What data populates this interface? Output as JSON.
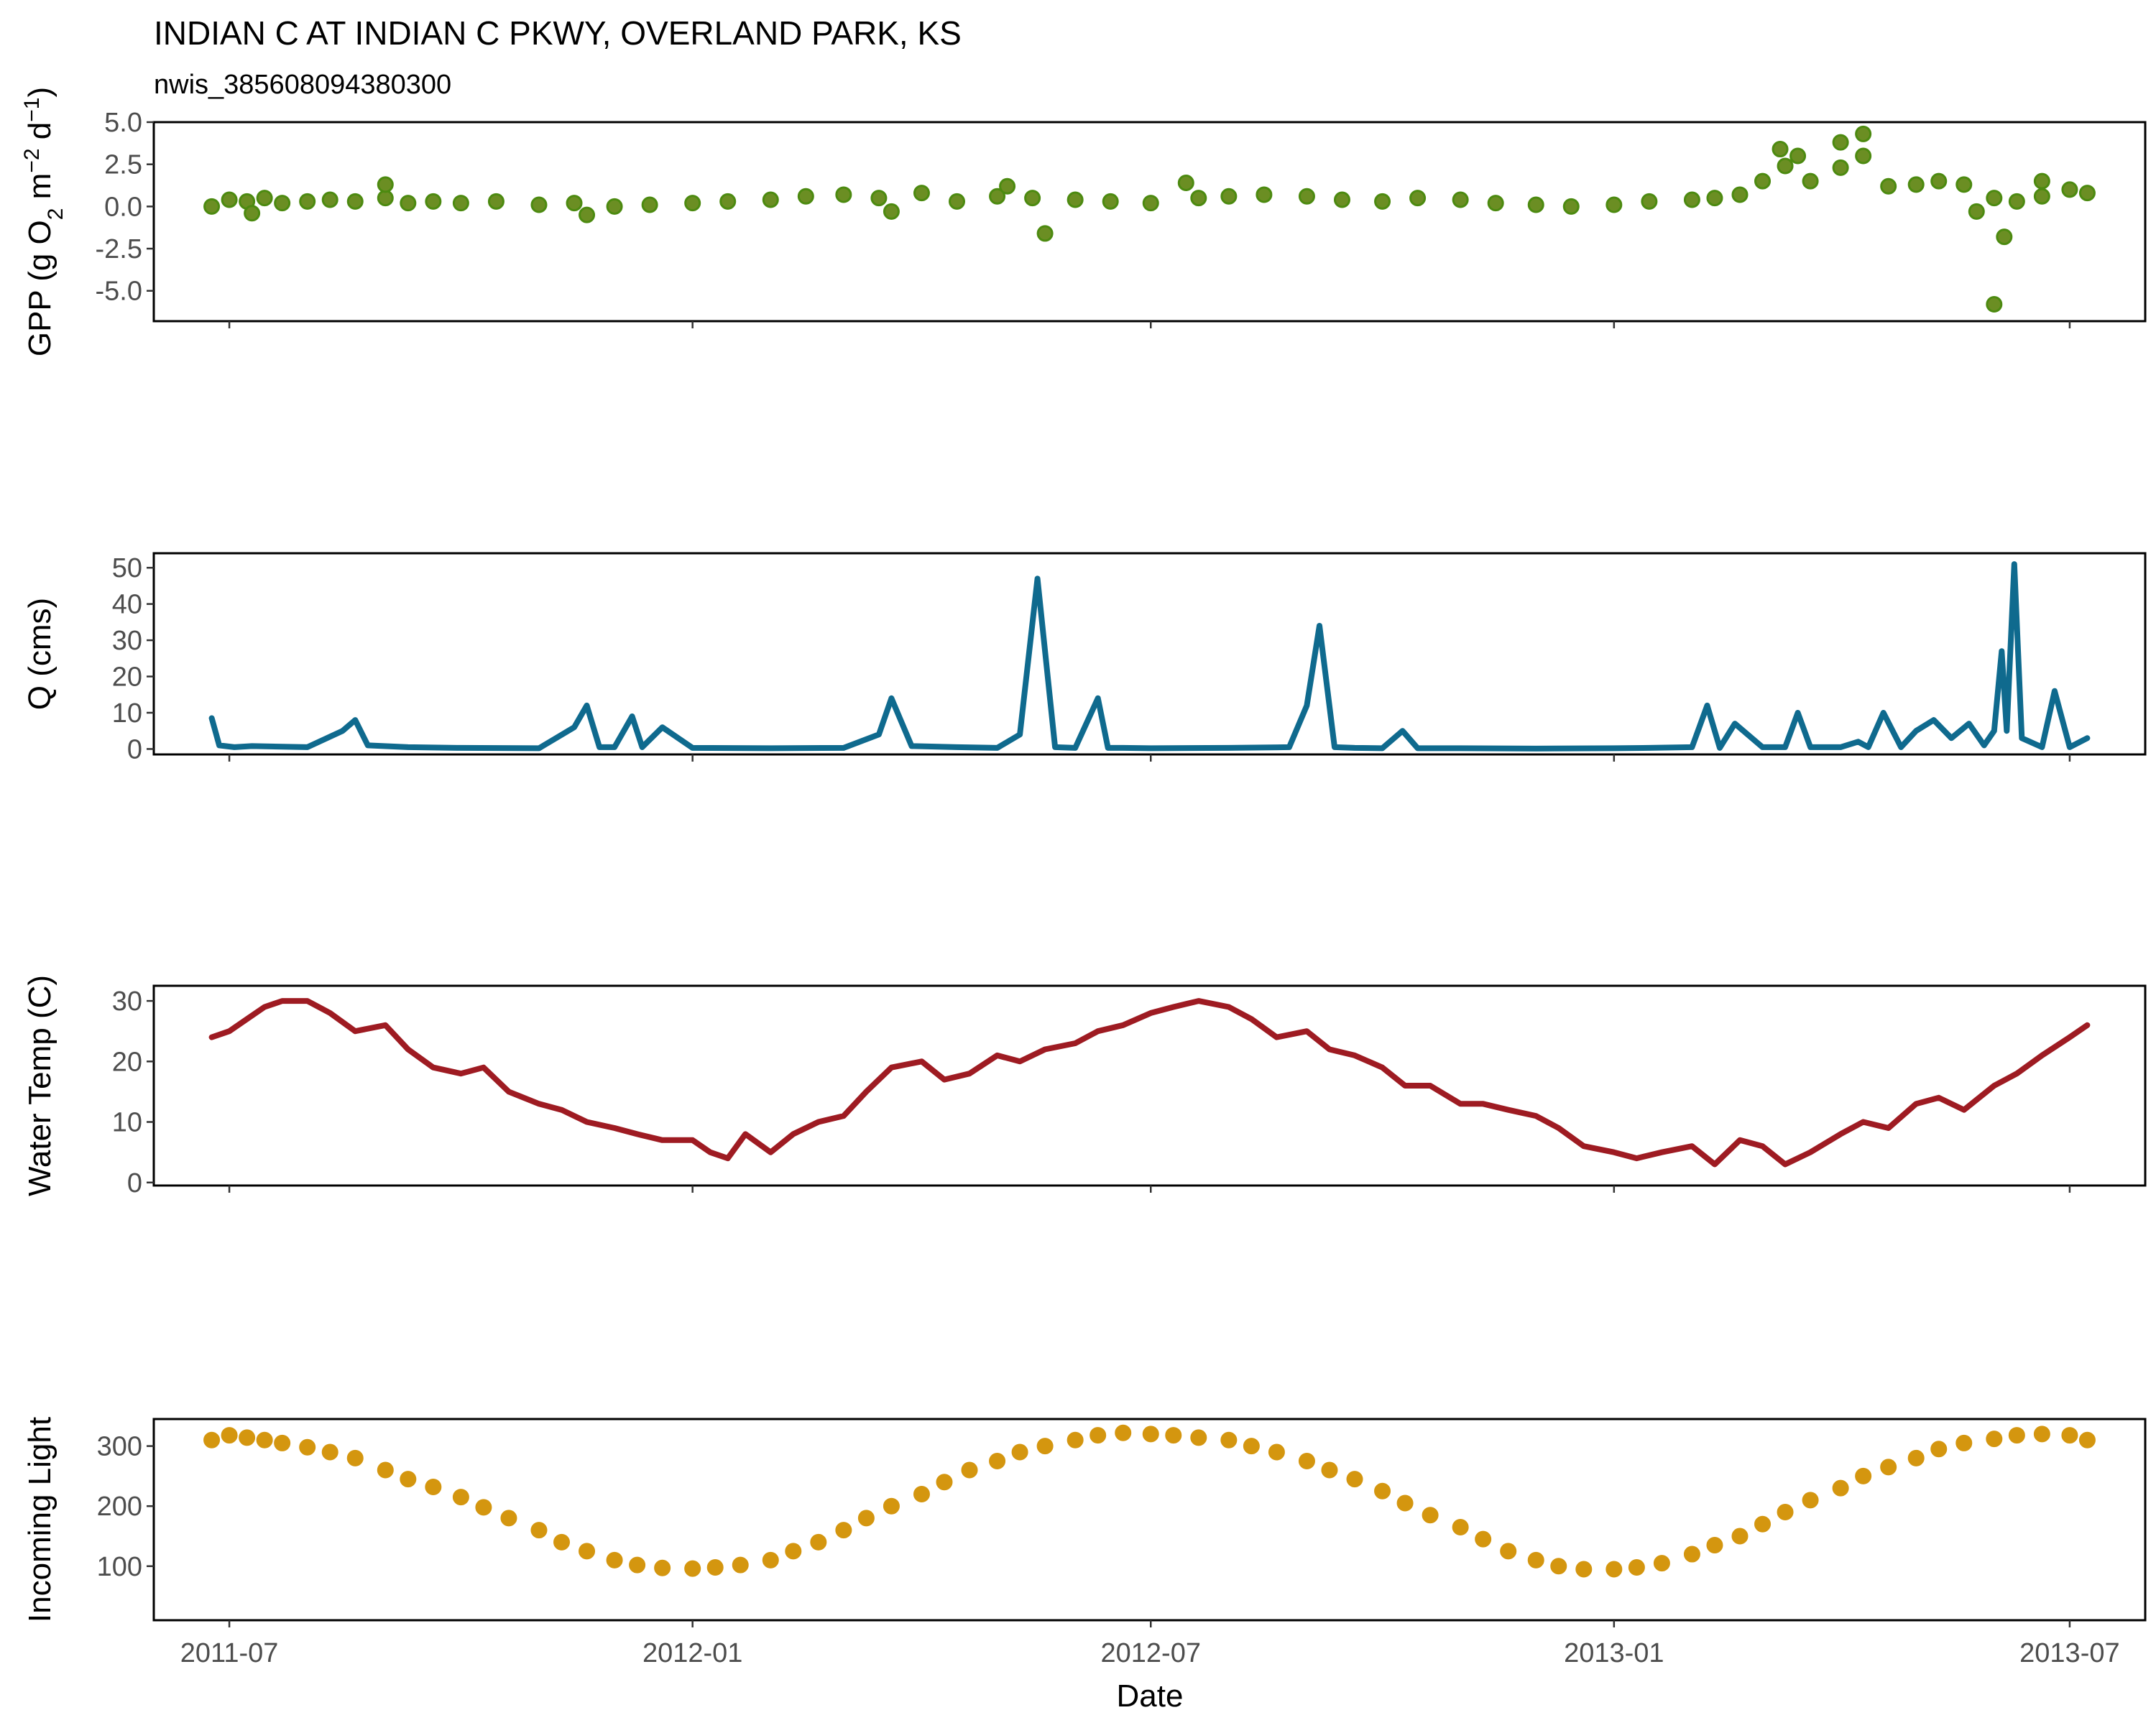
{
  "title": "INDIAN C AT INDIAN C PKWY, OVERLAND PARK, KS",
  "subtitle": "nwis_385608094380300",
  "chart_data": [
    {
      "id": "gpp",
      "type": "scatter",
      "ylabel_parts": {
        "pre": "GPP (g  O",
        "sub2": "2",
        "mid": " m",
        "sup1": "−2",
        "mid2": " d",
        "sup2": "−1",
        "post": ")"
      },
      "ylabel_text": "GPP (g O2 m-2 d-1)",
      "ylim": [
        -6.8,
        5.0
      ],
      "yticks": [
        {
          "v": 5.0,
          "label": "5.0"
        },
        {
          "v": 2.5,
          "label": "2.5"
        },
        {
          "v": 0.0,
          "label": "0.0"
        },
        {
          "v": -2.5,
          "label": "-2.5"
        },
        {
          "v": -5.0,
          "label": "-5.0"
        }
      ],
      "color": "#6b8e23",
      "edge": "#4c8a10",
      "x": [
        "2011-06-24",
        "2011-07-01",
        "2011-07-08",
        "2011-07-15",
        "2011-07-22",
        "2011-08-01",
        "2011-08-10",
        "2011-08-20",
        "2011-09-01",
        "2011-09-10",
        "2011-09-20",
        "2011-10-01",
        "2011-10-15",
        "2011-11-01",
        "2011-11-15",
        "2011-12-01",
        "2011-12-15",
        "2012-01-01",
        "2012-01-15",
        "2012-02-01",
        "2012-02-15",
        "2012-03-01",
        "2012-03-15",
        "2012-04-01",
        "2012-04-15",
        "2012-05-01",
        "2012-05-15",
        "2012-06-01",
        "2012-06-15",
        "2012-07-01",
        "2012-07-10",
        "2012-07-20",
        "2012-08-01",
        "2012-08-15",
        "2012-09-01",
        "2012-09-15",
        "2012-10-01",
        "2012-10-15",
        "2012-11-01",
        "2012-11-15",
        "2012-12-01",
        "2012-12-15",
        "2013-01-01",
        "2013-01-15",
        "2013-02-01",
        "2013-02-10",
        "2013-02-20",
        "2013-03-01",
        "2013-03-10",
        "2013-03-20",
        "2013-04-01",
        "2013-04-10",
        "2013-04-20",
        "2013-05-01",
        "2013-05-10",
        "2013-05-20",
        "2013-06-01",
        "2013-06-10",
        "2013-06-20",
        "2013-07-01",
        "2013-07-08"
      ],
      "y": [
        0.0,
        0.4,
        0.3,
        0.5,
        0.2,
        0.3,
        0.4,
        0.3,
        0.5,
        0.2,
        0.3,
        0.2,
        0.3,
        0.1,
        0.2,
        0.0,
        0.1,
        0.2,
        0.3,
        0.4,
        0.6,
        0.7,
        0.5,
        0.8,
        0.3,
        0.6,
        0.5,
        0.4,
        0.3,
        0.2,
        null,
        0.5,
        0.6,
        0.7,
        0.6,
        0.4,
        0.3,
        0.5,
        0.4,
        0.2,
        0.1,
        0.0,
        0.1,
        0.3,
        0.4,
        0.5,
        0.7,
        1.5,
        2.4,
        1.5,
        2.3,
        3.0,
        1.2,
        1.3,
        1.5,
        1.3,
        0.5,
        0.3,
        0.6,
        1.0,
        0.8
      ],
      "outliers": {
        "x": [
          "2011-07-10",
          "2011-09-01",
          "2011-11-20",
          "2012-03-20",
          "2012-05-05",
          "2012-05-20",
          "2012-07-15",
          "2013-03-08",
          "2013-03-15",
          "2013-04-01",
          "2013-04-10",
          "2013-05-25",
          "2013-06-01",
          "2013-06-05",
          "2013-06-20"
        ],
        "y": [
          -0.4,
          1.3,
          -0.5,
          -0.3,
          1.2,
          -1.6,
          1.4,
          3.4,
          3.0,
          3.8,
          4.3,
          -0.3,
          -5.8,
          -1.8,
          1.5
        ]
      }
    },
    {
      "id": "q",
      "type": "line",
      "ylabel": "Q (cms)",
      "ylim": [
        -1.5,
        54
      ],
      "yticks": [
        {
          "v": 0,
          "label": "0"
        },
        {
          "v": 10,
          "label": "10"
        },
        {
          "v": 20,
          "label": "20"
        },
        {
          "v": 30,
          "label": "30"
        },
        {
          "v": 40,
          "label": "40"
        },
        {
          "v": 50,
          "label": "50"
        }
      ],
      "color": "#0f6a8e",
      "x": [
        "2011-06-24",
        "2011-06-27",
        "2011-07-03",
        "2011-07-10",
        "2011-08-01",
        "2011-08-15",
        "2011-08-20",
        "2011-08-25",
        "2011-09-10",
        "2011-10-01",
        "2011-11-01",
        "2011-11-15",
        "2011-11-20",
        "2011-11-25",
        "2011-12-01",
        "2011-12-08",
        "2011-12-12",
        "2011-12-20",
        "2012-01-01",
        "2012-02-01",
        "2012-03-01",
        "2012-03-15",
        "2012-03-20",
        "2012-03-28",
        "2012-04-15",
        "2012-05-01",
        "2012-05-10",
        "2012-05-17",
        "2012-05-24",
        "2012-06-01",
        "2012-06-10",
        "2012-06-14",
        "2012-06-20",
        "2012-07-01",
        "2012-08-01",
        "2012-08-25",
        "2012-09-01",
        "2012-09-06",
        "2012-09-12",
        "2012-09-20",
        "2012-10-01",
        "2012-10-09",
        "2012-10-15",
        "2012-11-01",
        "2012-12-01",
        "2013-01-01",
        "2013-01-15",
        "2013-02-01",
        "2013-02-07",
        "2013-02-12",
        "2013-02-18",
        "2013-03-01",
        "2013-03-10",
        "2013-03-15",
        "2013-03-20",
        "2013-04-01",
        "2013-04-08",
        "2013-04-12",
        "2013-04-18",
        "2013-04-25",
        "2013-05-01",
        "2013-05-08",
        "2013-05-15",
        "2013-05-22",
        "2013-05-28",
        "2013-06-01",
        "2013-06-04",
        "2013-06-06",
        "2013-06-09",
        "2013-06-12",
        "2013-06-20",
        "2013-06-25",
        "2013-07-01",
        "2013-07-08"
      ],
      "y": [
        8.5,
        1.0,
        0.5,
        0.8,
        0.5,
        5.0,
        8.0,
        1.0,
        0.5,
        0.3,
        0.2,
        6.0,
        12.0,
        0.5,
        0.5,
        9.0,
        0.5,
        6.0,
        0.3,
        0.2,
        0.3,
        4.0,
        14.0,
        0.8,
        0.5,
        0.3,
        4.0,
        47.0,
        0.5,
        0.3,
        14.0,
        0.3,
        0.3,
        0.2,
        0.3,
        0.5,
        12.0,
        34.0,
        0.5,
        0.3,
        0.2,
        5.0,
        0.2,
        0.2,
        0.1,
        0.2,
        0.3,
        0.5,
        12.0,
        0.3,
        7.0,
        0.5,
        0.5,
        10.0,
        0.5,
        0.5,
        2.0,
        0.5,
        10.0,
        0.5,
        5.0,
        8.0,
        3.0,
        7.0,
        1.0,
        5.0,
        27.0,
        5.0,
        51.0,
        3.0,
        0.5,
        16.0,
        0.5,
        3.0
      ]
    },
    {
      "id": "temp",
      "type": "line",
      "ylabel": "Water Temp (C)",
      "ylim": [
        -0.5,
        32.5
      ],
      "yticks": [
        {
          "v": 0,
          "label": "0"
        },
        {
          "v": 10,
          "label": "10"
        },
        {
          "v": 20,
          "label": "20"
        },
        {
          "v": 30,
          "label": "30"
        }
      ],
      "color": "#9e1b22",
      "x": [
        "2011-06-24",
        "2011-07-01",
        "2011-07-08",
        "2011-07-15",
        "2011-07-22",
        "2011-08-01",
        "2011-08-10",
        "2011-08-20",
        "2011-09-01",
        "2011-09-10",
        "2011-09-20",
        "2011-10-01",
        "2011-10-10",
        "2011-10-20",
        "2011-11-01",
        "2011-11-10",
        "2011-11-20",
        "2011-12-01",
        "2011-12-10",
        "2011-12-20",
        "2012-01-01",
        "2012-01-08",
        "2012-01-15",
        "2012-01-22",
        "2012-02-01",
        "2012-02-10",
        "2012-02-20",
        "2012-03-01",
        "2012-03-10",
        "2012-03-20",
        "2012-04-01",
        "2012-04-10",
        "2012-04-20",
        "2012-05-01",
        "2012-05-10",
        "2012-05-20",
        "2012-06-01",
        "2012-06-10",
        "2012-06-20",
        "2012-07-01",
        "2012-07-10",
        "2012-07-20",
        "2012-08-01",
        "2012-08-10",
        "2012-08-20",
        "2012-09-01",
        "2012-09-10",
        "2012-09-20",
        "2012-10-01",
        "2012-10-10",
        "2012-10-20",
        "2012-11-01",
        "2012-11-10",
        "2012-11-20",
        "2012-12-01",
        "2012-12-10",
        "2012-12-20",
        "2013-01-01",
        "2013-01-10",
        "2013-01-20",
        "2013-02-01",
        "2013-02-10",
        "2013-02-20",
        "2013-03-01",
        "2013-03-10",
        "2013-03-20",
        "2013-04-01",
        "2013-04-10",
        "2013-04-20",
        "2013-05-01",
        "2013-05-10",
        "2013-05-20",
        "2013-06-01",
        "2013-06-10",
        "2013-06-20",
        "2013-07-01",
        "2013-07-08"
      ],
      "y": [
        24,
        25,
        27,
        29,
        30,
        30,
        28,
        25,
        26,
        22,
        19,
        18,
        19,
        15,
        13,
        12,
        10,
        9,
        8,
        7,
        7,
        5,
        4,
        8,
        5,
        8,
        10,
        11,
        15,
        19,
        20,
        17,
        18,
        21,
        20,
        22,
        23,
        25,
        26,
        28,
        29,
        30,
        29,
        27,
        24,
        25,
        22,
        21,
        19,
        16,
        16,
        13,
        13,
        12,
        11,
        9,
        6,
        5,
        4,
        5,
        6,
        3,
        7,
        6,
        3,
        5,
        8,
        10,
        9,
        13,
        14,
        12,
        16,
        18,
        21,
        24,
        26
      ]
    },
    {
      "id": "light",
      "type": "scatter",
      "ylabel": "Incoming Light",
      "ylim": [
        10,
        345
      ],
      "yticks": [
        {
          "v": 100,
          "label": "100"
        },
        {
          "v": 200,
          "label": "200"
        },
        {
          "v": 300,
          "label": "300"
        }
      ],
      "color": "#d4960f",
      "x": [
        "2011-06-24",
        "2011-07-01",
        "2011-07-08",
        "2011-07-15",
        "2011-07-22",
        "2011-08-01",
        "2011-08-10",
        "2011-08-20",
        "2011-09-01",
        "2011-09-10",
        "2011-09-20",
        "2011-10-01",
        "2011-10-10",
        "2011-10-20",
        "2011-11-01",
        "2011-11-10",
        "2011-11-20",
        "2011-12-01",
        "2011-12-10",
        "2011-12-20",
        "2012-01-01",
        "2012-01-10",
        "2012-01-20",
        "2012-02-01",
        "2012-02-10",
        "2012-02-20",
        "2012-03-01",
        "2012-03-10",
        "2012-03-20",
        "2012-04-01",
        "2012-04-10",
        "2012-04-20",
        "2012-05-01",
        "2012-05-10",
        "2012-05-20",
        "2012-06-01",
        "2012-06-10",
        "2012-06-20",
        "2012-07-01",
        "2012-07-10",
        "2012-07-20",
        "2012-08-01",
        "2012-08-10",
        "2012-08-20",
        "2012-09-01",
        "2012-09-10",
        "2012-09-20",
        "2012-10-01",
        "2012-10-10",
        "2012-10-20",
        "2012-11-01",
        "2012-11-10",
        "2012-11-20",
        "2012-12-01",
        "2012-12-10",
        "2012-12-20",
        "2013-01-01",
        "2013-01-10",
        "2013-01-20",
        "2013-02-01",
        "2013-02-10",
        "2013-02-20",
        "2013-03-01",
        "2013-03-10",
        "2013-03-20",
        "2013-04-01",
        "2013-04-10",
        "2013-04-20",
        "2013-05-01",
        "2013-05-10",
        "2013-05-20",
        "2013-06-01",
        "2013-06-10",
        "2013-06-20",
        "2013-07-01",
        "2013-07-08"
      ],
      "y": [
        310,
        318,
        314,
        310,
        305,
        298,
        290,
        280,
        260,
        245,
        232,
        215,
        198,
        180,
        160,
        140,
        125,
        110,
        102,
        97,
        96,
        98,
        102,
        110,
        125,
        140,
        160,
        180,
        200,
        220,
        240,
        260,
        275,
        290,
        300,
        310,
        318,
        322,
        320,
        318,
        314,
        310,
        300,
        290,
        275,
        260,
        245,
        225,
        205,
        185,
        165,
        145,
        125,
        110,
        100,
        95,
        95,
        98,
        105,
        120,
        135,
        150,
        170,
        190,
        210,
        230,
        250,
        265,
        280,
        295,
        305,
        312,
        318,
        320,
        318,
        310
      ]
    }
  ],
  "shared_x": {
    "xlabel": "Date",
    "xlim": [
      "2011-06-01",
      "2013-07-31"
    ],
    "xticks": [
      {
        "v": "2011-07-01",
        "label": "2011-07"
      },
      {
        "v": "2012-01-01",
        "label": "2012-01"
      },
      {
        "v": "2012-07-01",
        "label": "2012-07"
      },
      {
        "v": "2013-01-01",
        "label": "2013-01"
      },
      {
        "v": "2013-07-01",
        "label": "2013-07"
      }
    ]
  }
}
